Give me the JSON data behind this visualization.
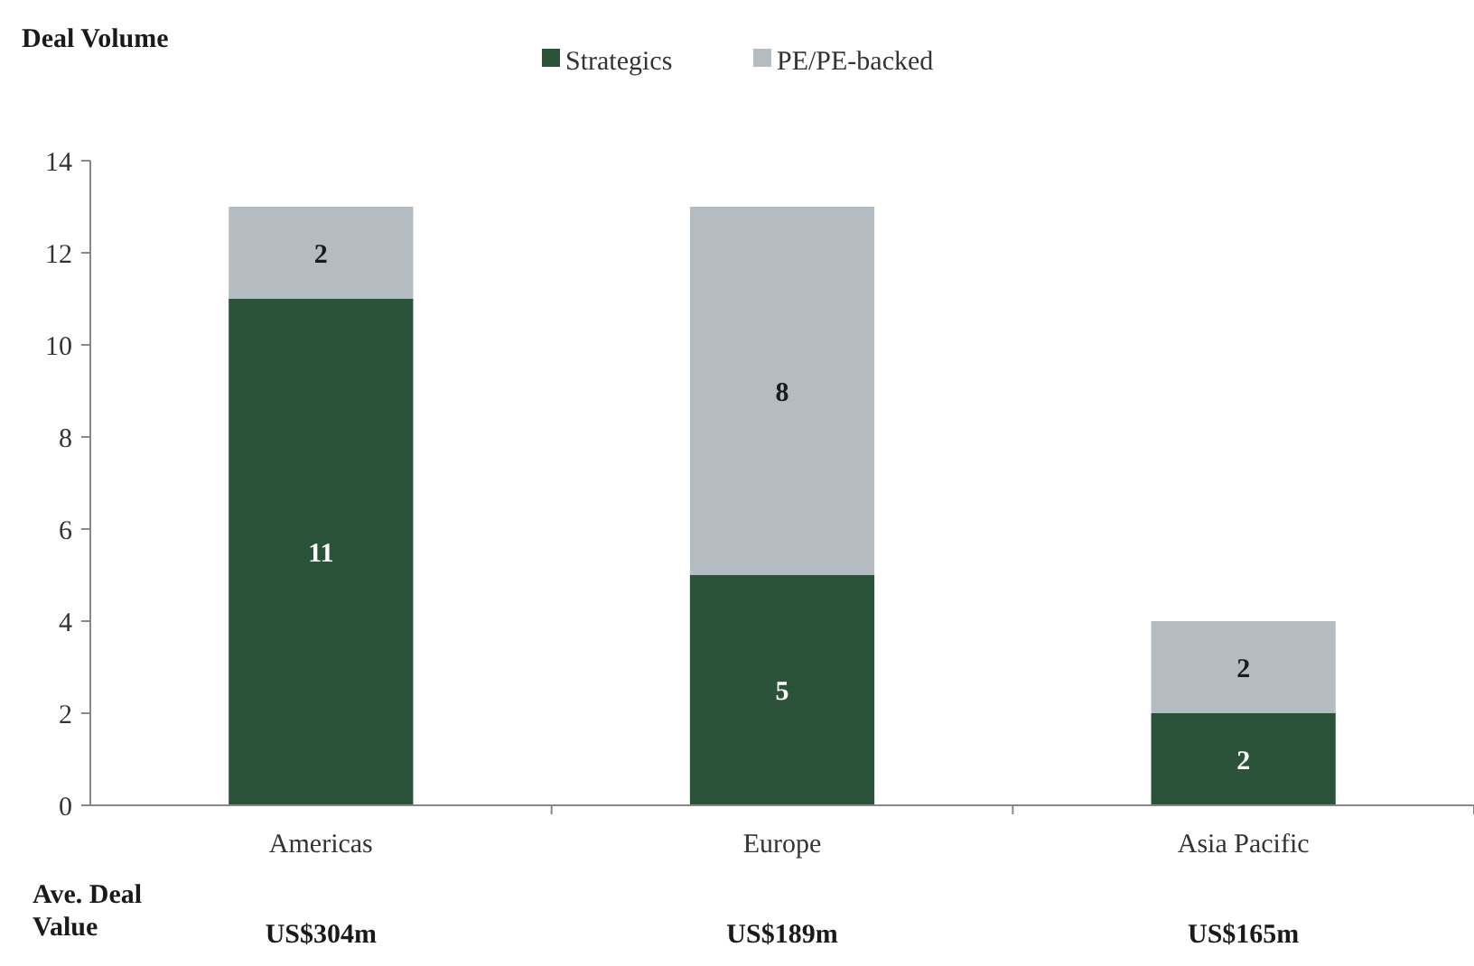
{
  "chart_data": {
    "type": "bar",
    "stacked": true,
    "title": "Deal Volume",
    "categories": [
      "Americas",
      "Europe",
      "Asia Pacific"
    ],
    "series": [
      {
        "name": "Strategics",
        "color": "#2a5339",
        "values": [
          11,
          5,
          2
        ]
      },
      {
        "name": "PE/PE-backed",
        "color": "#b5bcc1",
        "values": [
          2,
          8,
          2
        ]
      }
    ],
    "ylim": [
      0,
      14
    ],
    "yticks": [
      0,
      2,
      4,
      6,
      8,
      10,
      12,
      14
    ],
    "grid": false,
    "legend": "top",
    "data_labels": true,
    "annotations": [
      "Ave. Deal Value",
      "US$304m",
      "US$189m",
      "US$165m"
    ]
  }
}
